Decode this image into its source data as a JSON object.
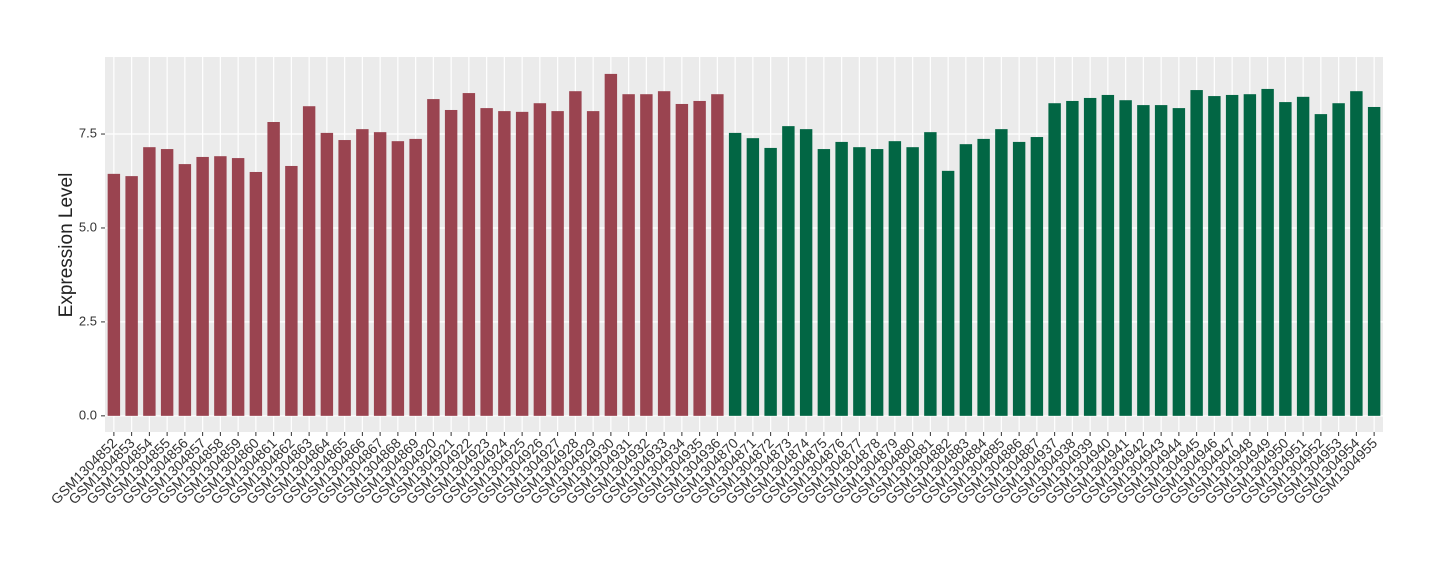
{
  "chart_data": {
    "type": "bar",
    "y_label": "Expression Level",
    "categories": [
      "GSM1304852",
      "GSM1304853",
      "GSM1304854",
      "GSM1304855",
      "GSM1304856",
      "GSM1304857",
      "GSM1304858",
      "GSM1304859",
      "GSM1304860",
      "GSM1304861",
      "GSM1304862",
      "GSM1304863",
      "GSM1304864",
      "GSM1304865",
      "GSM1304866",
      "GSM1304867",
      "GSM1304868",
      "GSM1304869",
      "GSM1304920",
      "GSM1304921",
      "GSM1304922",
      "GSM1304923",
      "GSM1304924",
      "GSM1304925",
      "GSM1304926",
      "GSM1304927",
      "GSM1304928",
      "GSM1304929",
      "GSM1304930",
      "GSM1304931",
      "GSM1304932",
      "GSM1304933",
      "GSM1304934",
      "GSM1304935",
      "GSM1304936",
      "GSM1304870",
      "GSM1304871",
      "GSM1304872",
      "GSM1304873",
      "GSM1304874",
      "GSM1304875",
      "GSM1304876",
      "GSM1304877",
      "GSM1304878",
      "GSM1304879",
      "GSM1304880",
      "GSM1304881",
      "GSM1304882",
      "GSM1304883",
      "GSM1304884",
      "GSM1304885",
      "GSM1304886",
      "GSM1304887",
      "GSM1304937",
      "GSM1304938",
      "GSM1304939",
      "GSM1304940",
      "GSM1304941",
      "GSM1304942",
      "GSM1304943",
      "GSM1304944",
      "GSM1304945",
      "GSM1304946",
      "GSM1304947",
      "GSM1304948",
      "GSM1304949",
      "GSM1304950",
      "GSM1304951",
      "GSM1304952",
      "GSM1304953",
      "GSM1304954",
      "GSM1304955"
    ],
    "values": [
      6.44,
      6.38,
      7.15,
      7.1,
      6.7,
      6.89,
      6.91,
      6.86,
      6.49,
      7.82,
      6.65,
      8.24,
      7.53,
      7.34,
      7.63,
      7.55,
      7.31,
      7.37,
      8.43,
      8.14,
      8.59,
      8.19,
      8.11,
      8.09,
      8.32,
      8.11,
      8.64,
      8.11,
      9.1,
      8.56,
      8.56,
      8.64,
      8.3,
      8.38,
      8.56,
      7.53,
      7.39,
      7.13,
      7.71,
      7.63,
      7.1,
      7.29,
      7.15,
      7.1,
      7.31,
      7.15,
      7.55,
      6.52,
      7.23,
      7.37,
      7.63,
      7.29,
      7.42,
      8.32,
      8.38,
      8.46,
      8.54,
      8.4,
      8.27,
      8.27,
      8.19,
      8.67,
      8.51,
      8.54,
      8.56,
      8.7,
      8.35,
      8.49,
      8.03,
      8.32,
      8.64,
      8.22
    ],
    "colors": [
      "#9a4450",
      "#9a4450",
      "#9a4450",
      "#9a4450",
      "#9a4450",
      "#9a4450",
      "#9a4450",
      "#9a4450",
      "#9a4450",
      "#9a4450",
      "#9a4450",
      "#9a4450",
      "#9a4450",
      "#9a4450",
      "#9a4450",
      "#9a4450",
      "#9a4450",
      "#9a4450",
      "#9a4450",
      "#9a4450",
      "#9a4450",
      "#9a4450",
      "#9a4450",
      "#9a4450",
      "#9a4450",
      "#9a4450",
      "#9a4450",
      "#9a4450",
      "#9a4450",
      "#9a4450",
      "#9a4450",
      "#9a4450",
      "#9a4450",
      "#9a4450",
      "#9a4450",
      "#026644",
      "#026644",
      "#026644",
      "#026644",
      "#026644",
      "#026644",
      "#026644",
      "#026644",
      "#026644",
      "#026644",
      "#026644",
      "#026644",
      "#026644",
      "#026644",
      "#026644",
      "#026644",
      "#026644",
      "#026644",
      "#026644",
      "#026644",
      "#026644",
      "#026644",
      "#026644",
      "#026644",
      "#026644",
      "#026644",
      "#026644",
      "#026644",
      "#026644",
      "#026644",
      "#026644",
      "#026644",
      "#026644",
      "#026644",
      "#026644",
      "#026644",
      "#026644"
    ],
    "ylim": [
      -0.43,
      9.55
    ],
    "yticks": [
      {
        "value": 0,
        "label": "0.0"
      },
      2.5,
      {
        "value": 5,
        "label": "5.0"
      },
      7.5
    ],
    "grid": true
  }
}
